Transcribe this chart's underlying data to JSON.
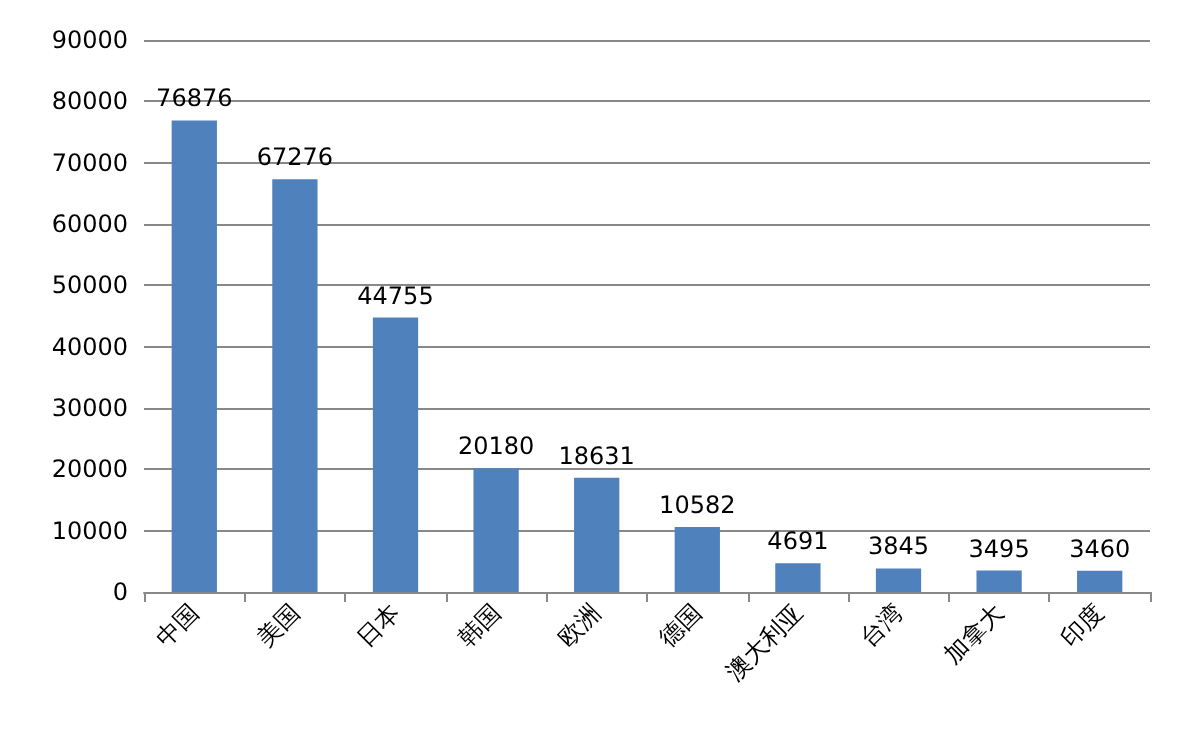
{
  "chart_data": {
    "type": "bar",
    "categories": [
      "中国",
      "美国",
      "日本",
      "韩国",
      "欧洲",
      "德国",
      "澳大利亚",
      "台湾",
      "加拿大",
      "印度"
    ],
    "values": [
      76876,
      67276,
      44755,
      20180,
      18631,
      10582,
      4691,
      3845,
      3495,
      3460
    ],
    "color": "#4f81bd",
    "ylim": [
      0,
      90000
    ],
    "yticks": [
      0,
      10000,
      20000,
      30000,
      40000,
      50000,
      60000,
      70000,
      80000,
      90000
    ],
    "grid": "y",
    "data_labels": true
  }
}
